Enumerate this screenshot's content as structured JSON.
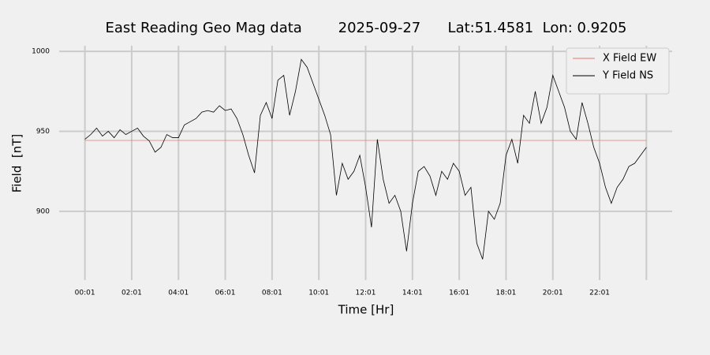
{
  "chart_data": {
    "type": "line",
    "title": "East Reading Geo Mag data        2025-09-27      Lat:51.4581  Lon: 0.9205",
    "x_label": "Time  [Hr]",
    "y_label": "Field  [nT]",
    "xlim": [
      -1.1,
      25.1
    ],
    "ylim": [
      857,
      1003.5
    ],
    "xticks": [
      {
        "value": 0,
        "label": "00:01"
      },
      {
        "value": 2,
        "label": "02:01"
      },
      {
        "value": 4,
        "label": "04:01"
      },
      {
        "value": 6,
        "label": "06:01"
      },
      {
        "value": 8,
        "label": "08:01"
      },
      {
        "value": 10,
        "label": "10:01"
      },
      {
        "value": 12,
        "label": "12:01"
      },
      {
        "value": 14,
        "label": "14:01"
      },
      {
        "value": 16,
        "label": "16:01"
      },
      {
        "value": 18,
        "label": "18:01"
      },
      {
        "value": 20,
        "label": "20:01"
      },
      {
        "value": 22,
        "label": "22:01"
      },
      {
        "value": 24,
        "label": null
      }
    ],
    "yticks": [
      900,
      950,
      1000
    ],
    "grid": true,
    "legend": "upper right",
    "series": [
      {
        "name": "X Field EW",
        "color": "#e8786b",
        "x": [
          0,
          24
        ],
        "values": [
          944.3,
          944.3
        ]
      },
      {
        "name": "Y Field NS",
        "color": "#000000",
        "x": [
          0,
          0.25,
          0.5,
          0.75,
          1,
          1.25,
          1.5,
          1.75,
          2,
          2.25,
          2.5,
          2.75,
          3,
          3.25,
          3.5,
          3.75,
          4,
          4.25,
          4.5,
          4.75,
          5,
          5.25,
          5.5,
          5.75,
          6,
          6.25,
          6.5,
          6.75,
          7,
          7.25,
          7.5,
          7.75,
          8,
          8.25,
          8.5,
          8.75,
          9,
          9.25,
          9.5,
          9.75,
          10,
          10.25,
          10.5,
          10.75,
          11,
          11.25,
          11.5,
          11.75,
          12,
          12.25,
          12.5,
          12.75,
          13,
          13.25,
          13.5,
          13.75,
          14,
          14.25,
          14.5,
          14.75,
          15,
          15.25,
          15.5,
          15.75,
          16,
          16.25,
          16.5,
          16.75,
          17,
          17.25,
          17.5,
          17.75,
          18,
          18.25,
          18.5,
          18.75,
          19,
          19.25,
          19.5,
          19.75,
          20,
          20.25,
          20.5,
          20.75,
          21,
          21.25,
          21.5,
          21.75,
          22,
          22.25,
          22.5,
          22.75,
          23,
          23.25,
          23.5,
          23.75,
          24
        ],
        "values": [
          945,
          948,
          952,
          947,
          950,
          946,
          951,
          948,
          950,
          952,
          947,
          944,
          937,
          940,
          948,
          946,
          946,
          954,
          956,
          958,
          962,
          963,
          962,
          966,
          963,
          964,
          958,
          948,
          935,
          924,
          960,
          968,
          958,
          982,
          985,
          960,
          975,
          995,
          990,
          980,
          970,
          960,
          948,
          910,
          930,
          920,
          925,
          935,
          915,
          890,
          945,
          920,
          905,
          910,
          900,
          875,
          905,
          925,
          928,
          922,
          910,
          925,
          920,
          930,
          925,
          910,
          915,
          880,
          870,
          900,
          895,
          905,
          935,
          945,
          930,
          960,
          955,
          975,
          955,
          965,
          985,
          975,
          965,
          950,
          945,
          968,
          955,
          940,
          930,
          915,
          905,
          915,
          920,
          928,
          930,
          935,
          940
        ]
      }
    ]
  }
}
